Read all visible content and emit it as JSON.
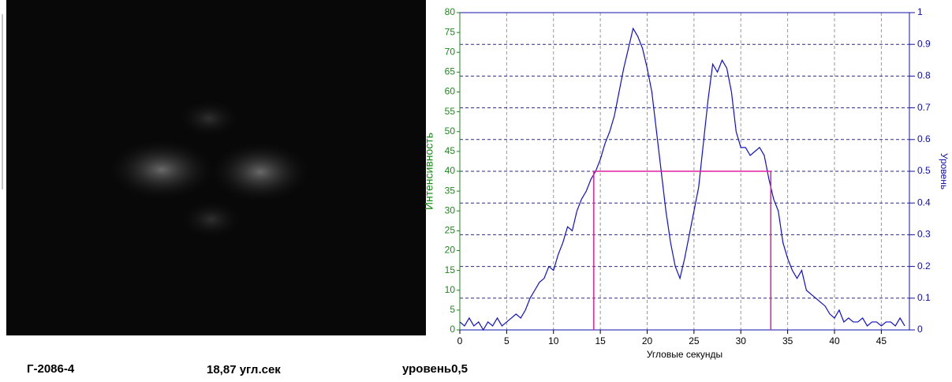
{
  "chart_data": {
    "type": "line",
    "xlabel": "Угловые секунды",
    "ylabel": "Интенсивность",
    "y2label": "Уровень",
    "x": [
      0,
      0.5,
      1,
      1.5,
      2,
      2.5,
      3,
      3.5,
      4,
      4.5,
      5,
      5.5,
      6,
      6.5,
      7,
      7.5,
      8,
      8.5,
      9,
      9.5,
      10,
      10.5,
      11,
      11.5,
      12,
      12.5,
      13,
      13.5,
      14,
      14.5,
      15,
      15.5,
      16,
      16.5,
      17,
      17.5,
      18,
      18.5,
      19,
      19.5,
      20,
      20.5,
      21,
      21.5,
      22,
      22.5,
      23,
      23.5,
      24,
      24.5,
      25,
      25.5,
      26,
      26.5,
      27,
      27.5,
      28,
      28.5,
      29,
      29.5,
      30,
      30.5,
      31,
      31.5,
      32,
      32.5,
      33,
      33.5,
      34,
      34.5,
      35,
      35.5,
      36,
      36.5,
      37,
      37.5,
      38,
      38.5,
      39,
      39.5,
      40,
      40.5,
      41,
      41.5,
      42,
      42.5,
      43,
      43.5,
      44,
      44.5,
      45,
      45.5,
      46,
      46.5,
      47,
      47.5
    ],
    "series": [
      {
        "color": "#1010cc",
        "values": [
          2,
          1,
          3,
          1,
          2,
          0,
          2,
          1,
          3,
          1,
          2,
          3,
          4,
          3,
          5,
          8,
          10,
          12,
          13,
          16,
          15,
          19,
          22,
          26,
          25,
          30,
          33,
          35,
          38,
          40,
          43,
          47,
          50,
          54,
          60,
          66,
          71,
          76,
          74,
          71,
          66,
          60,
          50,
          40,
          30,
          22,
          16,
          13,
          18,
          24,
          30,
          36,
          47,
          58,
          67,
          65,
          68,
          66,
          60,
          50,
          46,
          46,
          44,
          45,
          46,
          44,
          38,
          33,
          30,
          22,
          18,
          15,
          13,
          15,
          10,
          9,
          8,
          7,
          6,
          4,
          3,
          5,
          2,
          3,
          2,
          2,
          3,
          1,
          2,
          2,
          1,
          2,
          2,
          1,
          3,
          1
        ]
      }
    ],
    "xlim": [
      0,
      48
    ],
    "xticks": [
      0,
      5,
      10,
      15,
      20,
      25,
      30,
      35,
      40,
      45
    ],
    "ylim": [
      0,
      80
    ],
    "yticks": [
      0,
      5,
      10,
      15,
      20,
      25,
      30,
      35,
      40,
      45,
      50,
      55,
      60,
      65,
      70,
      75,
      80
    ],
    "y2lim": [
      0,
      1
    ],
    "y2ticks": [
      0,
      0.1,
      0.2,
      0.3,
      0.4,
      0.5,
      0.6,
      0.7,
      0.8,
      0.9,
      1
    ],
    "grid": true,
    "marker": {
      "color": "#e020a0",
      "y": 40,
      "x": [
        14.3,
        33.2
      ]
    }
  },
  "footer": {
    "sample": "Г-2086-4",
    "width": "18,87 угл.сек",
    "level": "уровень0,5"
  }
}
